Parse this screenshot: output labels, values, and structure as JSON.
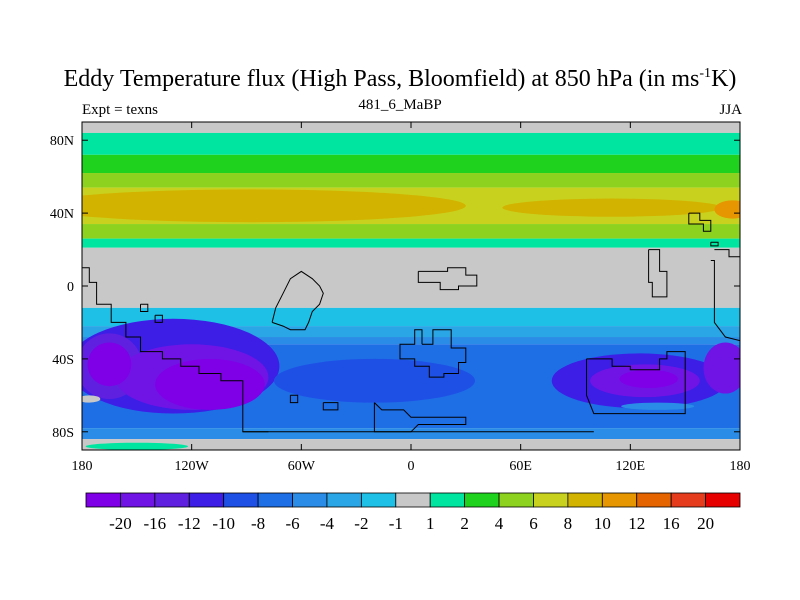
{
  "chart_data": {
    "type": "heatmap",
    "title": "Eddy Temperature flux (High Pass, Bloomfield) at 850 hPa (in ms",
    "title_sup": "-1",
    "title_end": "K)",
    "subtitle": "481_6_MaBP",
    "left_label": "Expt = texns",
    "right_label": "JJA",
    "xlim": [
      -180,
      180
    ],
    "ylim": [
      -90,
      90
    ],
    "x_ticks": [
      {
        "value": -180,
        "label": "180"
      },
      {
        "value": -120,
        "label": "120W"
      },
      {
        "value": -60,
        "label": "60W"
      },
      {
        "value": 0,
        "label": "0"
      },
      {
        "value": 60,
        "label": "60E"
      },
      {
        "value": 120,
        "label": "120E"
      },
      {
        "value": 180,
        "label": "180"
      }
    ],
    "y_ticks": [
      {
        "value": 80,
        "label": "80N"
      },
      {
        "value": 40,
        "label": "40N"
      },
      {
        "value": 0,
        "label": "0"
      },
      {
        "value": -40,
        "label": "40S"
      },
      {
        "value": -80,
        "label": "80S"
      }
    ],
    "colorbar": {
      "colors": [
        "#7f00e6",
        "#7014e6",
        "#6020e0",
        "#3c1ee6",
        "#1e50e6",
        "#1e6ee6",
        "#2a8ce6",
        "#2aa5e6",
        "#1ec0e6",
        "#c8c8c8",
        "#00e6a0",
        "#1ed21e",
        "#8cd21e",
        "#c8d21e",
        "#d2b400",
        "#e69600",
        "#e66400",
        "#e63c1e",
        "#e60000"
      ],
      "labels": [
        "-20",
        "-16",
        "-12",
        "-10",
        "-8",
        "-6",
        "-4",
        "-2",
        "-1",
        "1",
        "2",
        "4",
        "6",
        "8",
        "10",
        "12",
        "16",
        "20"
      ]
    },
    "bands": [
      {
        "lat": [
          84,
          90
        ],
        "level": 0
      },
      {
        "lat": [
          72,
          84
        ],
        "level": 1
      },
      {
        "lat": [
          62,
          72
        ],
        "level": 2
      },
      {
        "lat": [
          54,
          62
        ],
        "level": 3
      },
      {
        "lat": [
          34,
          54
        ],
        "level": 4
      },
      {
        "lat": [
          26,
          34
        ],
        "level": 3
      },
      {
        "lat": [
          21,
          26
        ],
        "level": 1
      },
      {
        "lat": [
          -12,
          21
        ],
        "level": 0
      },
      {
        "lat": [
          -22,
          -12
        ],
        "level": -1
      },
      {
        "lat": [
          -28,
          -22
        ],
        "level": -2
      },
      {
        "lat": [
          -32,
          -28
        ],
        "level": -3
      },
      {
        "lat": [
          -78,
          -32
        ],
        "level": -4
      },
      {
        "lat": [
          -84,
          -78
        ],
        "level": -3
      },
      {
        "lat": [
          -90,
          -84
        ],
        "level": 0
      }
    ],
    "blobs": [
      {
        "lon": -88,
        "lat": 44,
        "rx": 118,
        "ry": 9,
        "level": 5
      },
      {
        "lon": 110,
        "lat": 43,
        "rx": 60,
        "ry": 5,
        "level": 5
      },
      {
        "lon": 176,
        "lat": 42,
        "rx": 10,
        "ry": 5,
        "level": 6
      },
      {
        "lon": -130,
        "lat": -44,
        "rx": 58,
        "ry": 26,
        "level": -6
      },
      {
        "lon": -165,
        "lat": -44,
        "rx": 18,
        "ry": 18,
        "level": -7
      },
      {
        "lon": -120,
        "lat": -50,
        "rx": 42,
        "ry": 18,
        "level": -8
      },
      {
        "lon": -110,
        "lat": -54,
        "rx": 30,
        "ry": 14,
        "level": -9
      },
      {
        "lon": -165,
        "lat": -43,
        "rx": 12,
        "ry": 12,
        "level": -9
      },
      {
        "lon": -115,
        "lat": -52,
        "rx": 20,
        "ry": 10,
        "level": -10
      },
      {
        "lon": 125,
        "lat": -52,
        "rx": 48,
        "ry": 15,
        "level": -6
      },
      {
        "lon": 128,
        "lat": -52,
        "rx": 30,
        "ry": 9,
        "level": -8
      },
      {
        "lon": 130,
        "lat": -51,
        "rx": 16,
        "ry": 5,
        "level": -9
      },
      {
        "lon": 172,
        "lat": -45,
        "rx": 12,
        "ry": 14,
        "level": -8
      },
      {
        "lon": -20,
        "lat": -52,
        "rx": 55,
        "ry": 12,
        "level": -5
      },
      {
        "lon": -176,
        "lat": -62,
        "rx": 6,
        "ry": 2,
        "level": 0
      },
      {
        "lon": 135,
        "lat": -66,
        "rx": 20,
        "ry": 2,
        "level": -3
      },
      {
        "lon": -150,
        "lat": -88,
        "rx": 28,
        "ry": 2,
        "level": 1
      }
    ],
    "coastlines": [
      [
        [
          -180,
          10
        ],
        [
          -176,
          10
        ],
        [
          -176,
          2
        ],
        [
          -172,
          2
        ],
        [
          -172,
          -10
        ],
        [
          -164,
          -10
        ],
        [
          -164,
          -20
        ],
        [
          -156,
          -20
        ],
        [
          -156,
          -28
        ],
        [
          -148,
          -28
        ],
        [
          -148,
          -36
        ],
        [
          -136,
          -36
        ],
        [
          -136,
          -40
        ],
        [
          -126,
          -40
        ],
        [
          -126,
          -44
        ],
        [
          -116,
          -44
        ],
        [
          -116,
          -48
        ],
        [
          -104,
          -48
        ],
        [
          -104,
          -52
        ],
        [
          -92,
          -52
        ],
        [
          -92,
          -80
        ],
        [
          -78,
          -80
        ]
      ],
      [
        [
          -148,
          -10
        ],
        [
          -144,
          -10
        ],
        [
          -144,
          -14
        ],
        [
          -148,
          -14
        ],
        [
          -148,
          -10
        ]
      ],
      [
        [
          -140,
          -16
        ],
        [
          -136,
          -16
        ],
        [
          -136,
          -20
        ],
        [
          -140,
          -20
        ],
        [
          -140,
          -16
        ]
      ],
      [
        [
          -76,
          -20
        ],
        [
          -74,
          -12
        ],
        [
          -70,
          -4
        ],
        [
          -66,
          4
        ],
        [
          -60,
          8
        ],
        [
          -54,
          4
        ],
        [
          -50,
          0
        ],
        [
          -48,
          -4
        ],
        [
          -50,
          -10
        ],
        [
          -54,
          -14
        ],
        [
          -56,
          -20
        ],
        [
          -58,
          -24
        ],
        [
          -66,
          -24
        ],
        [
          -70,
          -22
        ],
        [
          -76,
          -20
        ]
      ],
      [
        [
          -66,
          -60
        ],
        [
          -62,
          -60
        ],
        [
          -62,
          -64
        ],
        [
          -66,
          -64
        ],
        [
          -66,
          -60
        ]
      ],
      [
        [
          -48,
          -64
        ],
        [
          -40,
          -64
        ],
        [
          -40,
          -68
        ],
        [
          -48,
          -68
        ],
        [
          -48,
          -64
        ]
      ],
      [
        [
          -20,
          -64
        ],
        [
          -16,
          -68
        ],
        [
          -4,
          -68
        ],
        [
          0,
          -72
        ],
        [
          30,
          -72
        ],
        [
          30,
          -76
        ],
        [
          4,
          -76
        ],
        [
          0,
          -80
        ],
        [
          -20,
          -80
        ],
        [
          -20,
          -64
        ]
      ],
      [
        [
          -92,
          -80
        ],
        [
          100,
          -80
        ]
      ],
      [
        [
          6,
          -32
        ],
        [
          6,
          -24
        ],
        [
          2,
          -24
        ],
        [
          2,
          -32
        ],
        [
          -6,
          -32
        ],
        [
          -6,
          -40
        ],
        [
          2,
          -40
        ],
        [
          2,
          -44
        ],
        [
          10,
          -44
        ],
        [
          10,
          -50
        ],
        [
          18,
          -50
        ],
        [
          18,
          -48
        ],
        [
          26,
          -48
        ],
        [
          26,
          -42
        ],
        [
          30,
          -42
        ],
        [
          30,
          -34
        ],
        [
          22,
          -34
        ],
        [
          22,
          -24
        ],
        [
          12,
          -24
        ],
        [
          12,
          -32
        ],
        [
          6,
          -32
        ]
      ],
      [
        [
          4,
          8
        ],
        [
          20,
          8
        ],
        [
          20,
          10
        ],
        [
          30,
          10
        ],
        [
          30,
          6
        ],
        [
          36,
          6
        ],
        [
          36,
          0
        ],
        [
          26,
          0
        ],
        [
          26,
          -2
        ],
        [
          16,
          -2
        ],
        [
          16,
          2
        ],
        [
          4,
          2
        ],
        [
          4,
          8
        ]
      ],
      [
        [
          96,
          -40
        ],
        [
          110,
          -40
        ],
        [
          110,
          -44
        ],
        [
          120,
          -44
        ],
        [
          120,
          -46
        ],
        [
          136,
          -46
        ],
        [
          136,
          -40
        ],
        [
          140,
          -40
        ],
        [
          140,
          -36
        ],
        [
          150,
          -36
        ],
        [
          150,
          -50
        ],
        [
          150,
          -70
        ],
        [
          100,
          -70
        ],
        [
          96,
          -60
        ],
        [
          96,
          -40
        ]
      ],
      [
        [
          130,
          20
        ],
        [
          136,
          20
        ],
        [
          136,
          8
        ],
        [
          140,
          8
        ],
        [
          140,
          -6
        ],
        [
          132,
          -6
        ],
        [
          132,
          2
        ],
        [
          130,
          2
        ],
        [
          130,
          20
        ]
      ],
      [
        [
          166,
          20
        ],
        [
          174,
          20
        ],
        [
          174,
          16
        ],
        [
          180,
          16
        ]
      ],
      [
        [
          164,
          14
        ],
        [
          166,
          14
        ],
        [
          166,
          0
        ],
        [
          166,
          -20
        ],
        [
          172,
          -28
        ],
        [
          180,
          -30
        ]
      ],
      [
        [
          152,
          40
        ],
        [
          158,
          40
        ],
        [
          158,
          36
        ],
        [
          164,
          36
        ],
        [
          164,
          30
        ],
        [
          160,
          30
        ],
        [
          160,
          34
        ],
        [
          152,
          34
        ],
        [
          152,
          40
        ]
      ],
      [
        [
          164,
          24
        ],
        [
          168,
          24
        ],
        [
          168,
          22
        ],
        [
          164,
          22
        ],
        [
          164,
          24
        ]
      ]
    ]
  }
}
